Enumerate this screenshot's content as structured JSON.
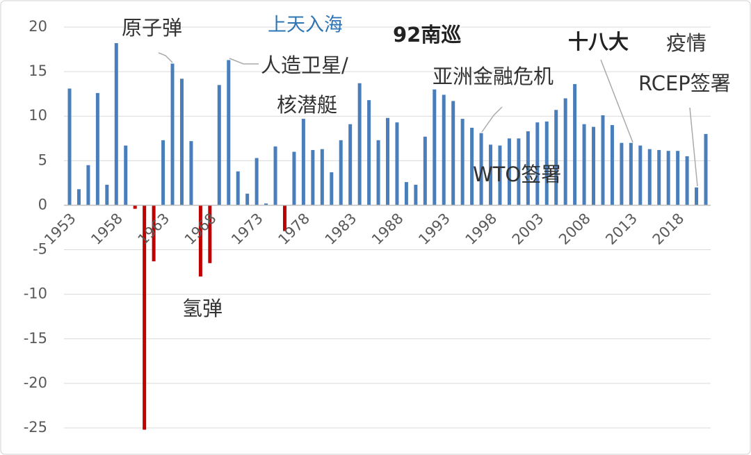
{
  "chart_data": {
    "type": "bar",
    "categories": [
      "1953",
      null,
      null,
      null,
      null,
      "1958",
      null,
      null,
      null,
      null,
      "1963",
      null,
      null,
      null,
      null,
      "1968",
      null,
      null,
      null,
      null,
      "1973",
      null,
      null,
      null,
      null,
      "1978",
      null,
      null,
      null,
      null,
      "1983",
      null,
      null,
      null,
      null,
      "1988",
      null,
      null,
      null,
      null,
      "1993",
      null,
      null,
      null,
      null,
      "1998",
      null,
      null,
      null,
      null,
      "2003",
      null,
      null,
      null,
      null,
      "2008",
      null,
      null,
      null,
      null,
      "2013",
      null,
      null,
      null,
      null,
      "2018",
      null,
      null,
      null
    ],
    "values": [
      13.1,
      1.8,
      4.5,
      12.6,
      2.3,
      18.2,
      6.7,
      -0.4,
      -25.2,
      -6.3,
      7.3,
      15.9,
      14.2,
      7.2,
      -8.0,
      -6.5,
      13.5,
      16.3,
      3.8,
      1.3,
      5.3,
      0.2,
      6.6,
      -2.9,
      6.0,
      9.7,
      6.2,
      6.3,
      3.7,
      7.3,
      9.1,
      13.7,
      11.8,
      7.3,
      9.8,
      9.3,
      2.6,
      2.3,
      7.7,
      13.0,
      12.4,
      11.7,
      9.7,
      8.7,
      8.1,
      6.8,
      6.7,
      7.5,
      7.5,
      8.3,
      9.3,
      9.4,
      10.7,
      12.0,
      13.6,
      9.1,
      8.8,
      10.1,
      9.0,
      7.0,
      7.0,
      6.7,
      6.3,
      6.2,
      6.1,
      6.1,
      5.5,
      2.0,
      8.0
    ],
    "color": "#4a7ebb",
    "negative_color": "#c00000",
    "ylim": [
      -25,
      20
    ],
    "yticks": [
      -25,
      -20,
      -15,
      -10,
      -5,
      0,
      5,
      10,
      15,
      20
    ],
    "grid": true,
    "annotations": [
      "原子弹",
      "上天入海",
      "人造卫星/",
      "核潜艇",
      "92南巡",
      "亚洲金融危机",
      "十八大",
      "疫情",
      "RCEP签署",
      "WTO签署",
      "氢弹"
    ]
  }
}
